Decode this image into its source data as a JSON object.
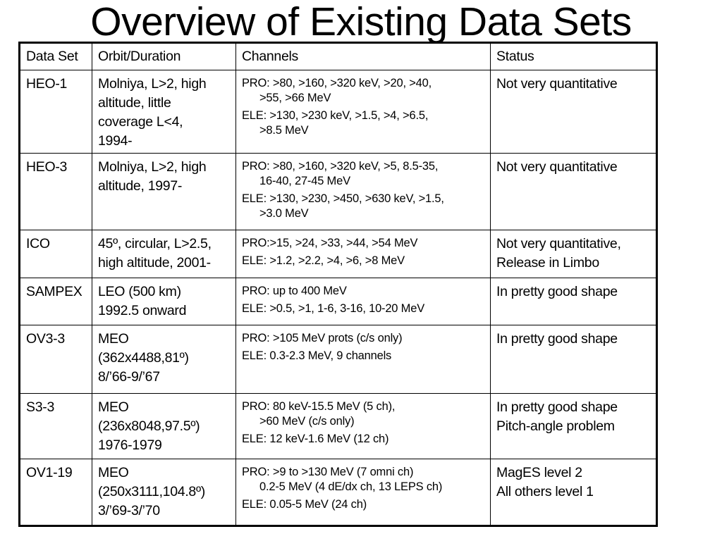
{
  "title": "Overview of Existing Data Sets",
  "table": {
    "headers": [
      "Data Set",
      "Orbit/Duration",
      "Channels",
      "Status"
    ],
    "rows": [
      {
        "dataset": "HEO-1",
        "orbit": [
          "Molniya, L>2, high",
          "altitude, little",
          "coverage L<4,",
          "1994-"
        ],
        "channels": [
          [
            "PRO: >80, >160, >320 keV, >20, >40,",
            ">55, >66 MeV"
          ],
          [
            "ELE: >130, >230 keV, >1.5, >4, >6.5,",
            ">8.5 MeV"
          ]
        ],
        "status": [
          "Not very quantitative"
        ]
      },
      {
        "dataset": "HEO-3",
        "orbit": [
          "Molniya, L>2, high",
          "altitude, 1997-"
        ],
        "channels": [
          [
            "PRO: >80, >160, >320 keV, >5, 8.5-35,",
            "16-40, 27-45 MeV"
          ],
          [
            "ELE: >130, >230, >450, >630 keV, >1.5,",
            ">3.0 MeV"
          ]
        ],
        "status": [
          "Not very quantitative"
        ]
      },
      {
        "dataset": "ICO",
        "orbit": [
          "45º, circular, L>2.5,",
          "high altitude, 2001-"
        ],
        "channels": [
          [
            "PRO:>15, >24, >33, >44, >54 MeV"
          ],
          [
            "ELE: >1.2, >2.2, >4, >6, >8 MeV"
          ]
        ],
        "status": [
          "Not very quantitative,",
          "Release in Limbo"
        ]
      },
      {
        "dataset": "SAMPEX",
        "orbit": [
          "LEO (500 km)",
          "1992.5 onward"
        ],
        "channels": [
          [
            "PRO: up to 400 MeV"
          ],
          [
            "ELE: >0.5, >1, 1-6, 3-16, 10-20 MeV"
          ]
        ],
        "status": [
          "In pretty good shape"
        ]
      },
      {
        "dataset": "OV3-3",
        "orbit": [
          "MEO",
          "(362x4488,81º)",
          "8/’66-9/’67"
        ],
        "channels": [
          [
            "PRO: >105 MeV prots (c/s only)"
          ],
          [
            "ELE: 0.3-2.3 MeV, 9 channels"
          ]
        ],
        "status": [
          "In pretty good shape"
        ]
      },
      {
        "dataset": "S3-3",
        "orbit": [
          "MEO",
          "(236x8048,97.5º)",
          "1976-1979"
        ],
        "channels": [
          [
            "PRO: 80 keV-15.5 MeV (5 ch),",
            ">60 MeV (c/s only)"
          ],
          [
            "ELE: 12 keV-1.6 MeV (12 ch)"
          ]
        ],
        "status": [
          "In pretty good shape",
          "Pitch-angle problem"
        ]
      },
      {
        "dataset": "OV1-19",
        "orbit": [
          "MEO",
          "(250x3111,104.8º)",
          "3/’69-3/’70"
        ],
        "channels": [
          [
            "PRO: >9 to >130 MeV (7 omni ch)",
            "0.2-5 MeV (4 dE/dx ch, 13 LEPS ch)"
          ],
          [
            "ELE: 0.05-5 MeV (24 ch)"
          ]
        ],
        "status": [
          "MagES level 2",
          "All others level 1"
        ]
      }
    ]
  }
}
